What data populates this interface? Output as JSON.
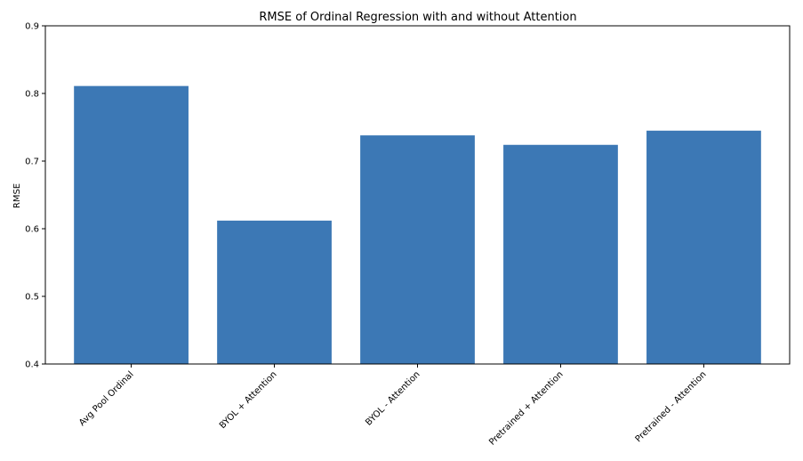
{
  "chart_data": {
    "type": "bar",
    "title": "RMSE of Ordinal Regression with and without Attention",
    "xlabel": "",
    "ylabel": "RMSE",
    "categories": [
      "Avg Pool Ordinal",
      "BYOL + Attention",
      "BYOL - Attention",
      "Pretrained + Attention",
      "Pretrained - Attention"
    ],
    "values": [
      0.811,
      0.612,
      0.738,
      0.724,
      0.745
    ],
    "ylim": [
      0.4,
      0.9
    ],
    "yticks": [
      "0.4",
      "0.5",
      "0.6",
      "0.7",
      "0.8",
      "0.9"
    ],
    "grid": false,
    "bar_color": "#3c78b5",
    "x_tick_rotation_deg": 45
  }
}
